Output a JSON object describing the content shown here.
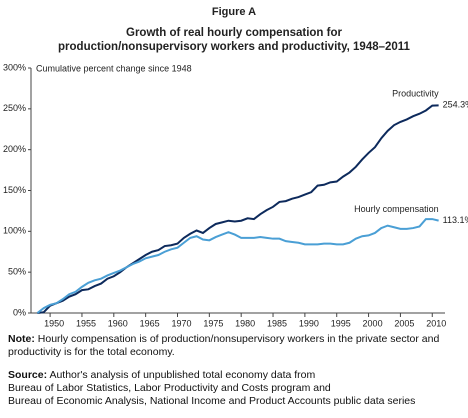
{
  "chart_data": {
    "type": "line",
    "figure_label": "Figure A",
    "title_lines": [
      "Growth of real hourly compensation for",
      "production/nonsupervisory workers and productivity, 1948–2011"
    ],
    "y_label": "Cumulative percent change since 1948",
    "x": [
      1948,
      1949,
      1950,
      1951,
      1952,
      1953,
      1954,
      1955,
      1956,
      1957,
      1958,
      1959,
      1960,
      1961,
      1962,
      1963,
      1964,
      1965,
      1966,
      1967,
      1968,
      1969,
      1970,
      1971,
      1972,
      1973,
      1974,
      1975,
      1976,
      1977,
      1978,
      1979,
      1980,
      1981,
      1982,
      1983,
      1984,
      1985,
      1986,
      1987,
      1988,
      1989,
      1990,
      1991,
      1992,
      1993,
      1994,
      1995,
      1996,
      1997,
      1998,
      1999,
      2000,
      2001,
      2002,
      2003,
      2004,
      2005,
      2006,
      2007,
      2008,
      2009,
      2010,
      2011
    ],
    "series": [
      {
        "name": "Productivity",
        "color": "#0d2a5c",
        "values": [
          0,
          1,
          9,
          12,
          15,
          20,
          23,
          28,
          29,
          33,
          36,
          42,
          45,
          50,
          56,
          61,
          66,
          71,
          75,
          77,
          82,
          83,
          85,
          92,
          97,
          101,
          98,
          104,
          109,
          111,
          113,
          112,
          113,
          116,
          115,
          121,
          126,
          130,
          136,
          137,
          140,
          142,
          145,
          148,
          156,
          157,
          160,
          161,
          167,
          172,
          179,
          188,
          196,
          203,
          214,
          223,
          230,
          234,
          237,
          241,
          244,
          248,
          254,
          254.3
        ],
        "value_labels": [
          null,
          null,
          null,
          null,
          null,
          null,
          null,
          null,
          null,
          null,
          null,
          null,
          null,
          null,
          null,
          null,
          null,
          null,
          null,
          null,
          null,
          null,
          null,
          null,
          null,
          null,
          null,
          null,
          null,
          null,
          null,
          null,
          null,
          null,
          null,
          null,
          null,
          null,
          null,
          null,
          null,
          null,
          null,
          null,
          null,
          null,
          null,
          null,
          null,
          null,
          null,
          null,
          null,
          null,
          null,
          null,
          null,
          null,
          null,
          null,
          null,
          null,
          null,
          "254.3%"
        ]
      },
      {
        "name": "Hourly compensation",
        "color": "#4a9fd5",
        "values": [
          0,
          6,
          10,
          12,
          17,
          23,
          26,
          32,
          37,
          40,
          42,
          46,
          49,
          52,
          56,
          60,
          63,
          67,
          69,
          71,
          75,
          78,
          80,
          86,
          92,
          94,
          90,
          89,
          93,
          96,
          99,
          96,
          92,
          92,
          92,
          93,
          92,
          91,
          91,
          88,
          87,
          86,
          84,
          84,
          84,
          85,
          85,
          84,
          84,
          86,
          91,
          94,
          95,
          98,
          104,
          107,
          105,
          103,
          103,
          104,
          106,
          115,
          115,
          113.1
        ],
        "value_labels": [
          null,
          null,
          null,
          null,
          null,
          null,
          null,
          null,
          null,
          null,
          null,
          null,
          null,
          null,
          null,
          null,
          null,
          null,
          null,
          null,
          null,
          null,
          null,
          null,
          null,
          null,
          null,
          null,
          null,
          null,
          null,
          null,
          null,
          null,
          null,
          null,
          null,
          null,
          null,
          null,
          null,
          null,
          null,
          null,
          null,
          null,
          null,
          null,
          null,
          null,
          null,
          null,
          null,
          null,
          null,
          null,
          null,
          null,
          null,
          null,
          null,
          null,
          null,
          "113.1%"
        ]
      }
    ],
    "xlim": [
      1947,
      2012
    ],
    "xticks": [
      1950,
      1955,
      1960,
      1965,
      1970,
      1975,
      1980,
      1985,
      1990,
      1995,
      2000,
      2005,
      2010
    ],
    "ylim": [
      0,
      300
    ],
    "yticks": [
      {
        "value": 0,
        "label": "0%"
      },
      {
        "value": 50,
        "label": "50%"
      },
      {
        "value": 100,
        "label": "100%"
      },
      {
        "value": 150,
        "label": "150%"
      },
      {
        "value": 200,
        "label": "200%"
      },
      {
        "value": 250,
        "label": "250%"
      },
      {
        "value": 300,
        "label": "300%"
      }
    ],
    "grid": false
  },
  "notes": {
    "note_label": "Note:",
    "note": "Hourly compensation is of production/nonsupervisory workers in the private sector and productivity is for the total economy.",
    "source_label": "Source:",
    "source_lines": [
      "Author's analysis of unpublished total economy data from",
      "Bureau of Labor Statistics, Labor Productivity and Costs program and",
      "Bureau of Economic Analysis, National Income and Product Accounts public data series"
    ]
  }
}
